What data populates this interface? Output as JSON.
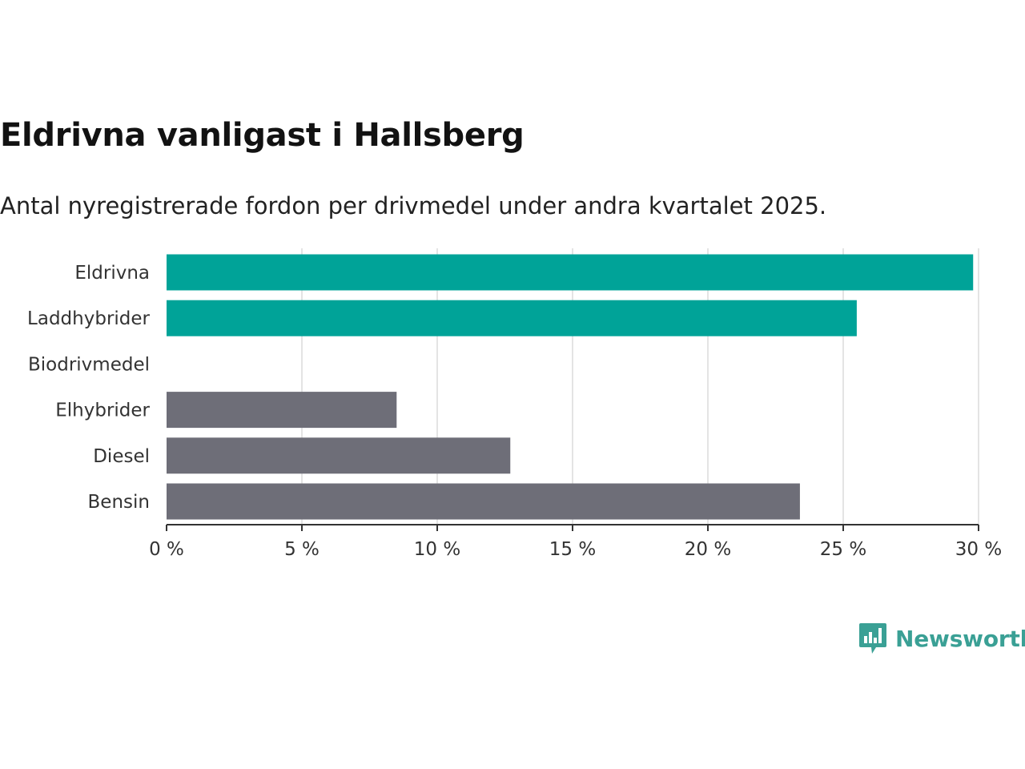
{
  "header": {
    "title": "Eldrivna vanligast i Hallsberg",
    "subtitle": "Antal nyregistrerade fordon per drivmedel under andra kvartalet 2025."
  },
  "chart_data": {
    "type": "bar",
    "orientation": "horizontal",
    "categories": [
      "Eldrivna",
      "Laddhybrider",
      "Biodrivmedel",
      "Elhybrider",
      "Diesel",
      "Bensin"
    ],
    "values": [
      29.8,
      25.5,
      0,
      8.5,
      12.7,
      23.4
    ],
    "colors": [
      "#00a398",
      "#00a398",
      "#00a398",
      "#6e6e78",
      "#6e6e78",
      "#6e6e78"
    ],
    "xlim": [
      0,
      30
    ],
    "xticks": [
      0,
      5,
      10,
      15,
      20,
      25,
      30
    ],
    "xtick_labels": [
      "0 %",
      "5 %",
      "10 %",
      "15 %",
      "20 %",
      "25 %",
      "30 %"
    ],
    "grid": true
  },
  "branding": {
    "logo_text": "Newsworthy",
    "logo_color": "#3aa095"
  }
}
